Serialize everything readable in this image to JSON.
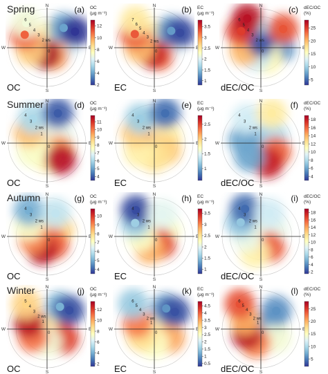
{
  "colormap": [
    "#313695",
    "#4575b4",
    "#74add1",
    "#abd9e9",
    "#e0f3f8",
    "#ffffbf",
    "#fee090",
    "#fdae61",
    "#f46d43",
    "#d73027",
    "#a50026"
  ],
  "grid_color": "#c8c8c8",
  "chart_data": {
    "type": "polar-bivariate-plot",
    "panels": [
      {
        "id": "a",
        "season": "Spring",
        "variable": "OC",
        "cb_title": [
          "OC",
          "(μg m⁻³)"
        ],
        "cb_ticks": [
          2,
          4,
          6,
          8,
          10,
          12
        ],
        "cb_min": 2,
        "cb_max": 13,
        "rings": [
          "6",
          "5",
          "4",
          "3",
          "2 ws"
        ],
        "blobs": [
          {
            "angle": 20,
            "ws": 2.0,
            "value": 8
          },
          {
            "angle": 80,
            "ws": 2.5,
            "value": 6
          },
          {
            "angle": 140,
            "ws": 1.5,
            "value": 10
          },
          {
            "angle": 200,
            "ws": 1.0,
            "value": 13
          },
          {
            "angle": 260,
            "ws": 2.5,
            "value": 9
          },
          {
            "angle": 300,
            "ws": 4.0,
            "value": 11
          },
          {
            "angle": 320,
            "ws": 5.0,
            "value": 7
          },
          {
            "angle": 40,
            "ws": 4.0,
            "value": 4
          },
          {
            "angle": 60,
            "ws": 5.0,
            "value": 2
          }
        ]
      },
      {
        "id": "b",
        "season": "",
        "variable": "EC",
        "cb_title": [
          "EC",
          "(μg m⁻³)"
        ],
        "cb_ticks": [
          1,
          1.5,
          2,
          2.5,
          3,
          3.5
        ],
        "cb_min": 0.8,
        "cb_max": 3.8,
        "rings": [
          "7",
          "6",
          "5",
          "4",
          "3",
          "2 ws"
        ],
        "blobs": [
          {
            "angle": 20,
            "ws": 2.0,
            "value": 2.5
          },
          {
            "angle": 80,
            "ws": 2.5,
            "value": 2
          },
          {
            "angle": 150,
            "ws": 1.5,
            "value": 3.2
          },
          {
            "angle": 200,
            "ws": 1.0,
            "value": 3.6
          },
          {
            "angle": 270,
            "ws": 2.5,
            "value": 2.8
          },
          {
            "angle": 305,
            "ws": 4.0,
            "value": 3.3
          },
          {
            "angle": 325,
            "ws": 5.5,
            "value": 2.5
          },
          {
            "angle": 45,
            "ws": 4.0,
            "value": 1.3
          },
          {
            "angle": 60,
            "ws": 5.0,
            "value": 0.9
          }
        ]
      },
      {
        "id": "c",
        "season": "",
        "variable": "dEC/OC",
        "cb_title": [
          "dEC/OC",
          "(%)"
        ],
        "cb_ticks": [
          5,
          10,
          15,
          20,
          25
        ],
        "cb_min": 3,
        "cb_max": 28,
        "rings": [
          "6",
          "5",
          "4",
          "3",
          "2 ws"
        ],
        "blobs": [
          {
            "angle": 30,
            "ws": 2.0,
            "value": 10
          },
          {
            "angle": 90,
            "ws": 3.0,
            "value": 7
          },
          {
            "angle": 150,
            "ws": 2.0,
            "value": 16
          },
          {
            "angle": 210,
            "ws": 1.5,
            "value": 12
          },
          {
            "angle": 260,
            "ws": 2.5,
            "value": 20
          },
          {
            "angle": 310,
            "ws": 4.0,
            "value": 25
          },
          {
            "angle": 335,
            "ws": 5.0,
            "value": 27
          },
          {
            "angle": 50,
            "ws": 4.5,
            "value": 24
          },
          {
            "angle": 0,
            "ws": 0.5,
            "value": 4
          }
        ]
      },
      {
        "id": "d",
        "season": "Summer",
        "variable": "OC",
        "cb_title": [
          "OC",
          "(μg m⁻³)"
        ],
        "cb_ticks": [
          4,
          5,
          6,
          7,
          8,
          9,
          10,
          11
        ],
        "cb_min": 3.5,
        "cb_max": 11.8,
        "rings": [
          "4",
          "3",
          "2 ws",
          "1"
        ],
        "blobs": [
          {
            "angle": 0,
            "ws": 0.5,
            "value": 9
          },
          {
            "angle": 60,
            "ws": 2.0,
            "value": 7
          },
          {
            "angle": 120,
            "ws": 2.0,
            "value": 9.5
          },
          {
            "angle": 180,
            "ws": 2.0,
            "value": 8
          },
          {
            "angle": 240,
            "ws": 2.5,
            "value": 7.5
          },
          {
            "angle": 300,
            "ws": 3.0,
            "value": 9
          },
          {
            "angle": 330,
            "ws": 4.0,
            "value": 6
          },
          {
            "angle": 20,
            "ws": 4.5,
            "value": 4
          },
          {
            "angle": 140,
            "ws": 3.0,
            "value": 11.5
          }
        ]
      },
      {
        "id": "e",
        "season": "",
        "variable": "EC",
        "cb_title": [
          "EC",
          "(μg m⁻³)"
        ],
        "cb_ticks": [
          1,
          1.5,
          2,
          2.5
        ],
        "cb_min": 0.6,
        "cb_max": 2.8,
        "rings": [
          "4",
          "3",
          "2 ws",
          "1"
        ],
        "blobs": [
          {
            "angle": 0,
            "ws": 0.3,
            "value": 2.7
          },
          {
            "angle": 60,
            "ws": 2.0,
            "value": 1.8
          },
          {
            "angle": 120,
            "ws": 2.0,
            "value": 2.0
          },
          {
            "angle": 180,
            "ws": 2.0,
            "value": 1.9
          },
          {
            "angle": 240,
            "ws": 2.5,
            "value": 1.8
          },
          {
            "angle": 300,
            "ws": 3.0,
            "value": 2.0
          },
          {
            "angle": 330,
            "ws": 4.0,
            "value": 1.2
          },
          {
            "angle": 20,
            "ws": 4.5,
            "value": 0.8
          }
        ]
      },
      {
        "id": "f",
        "season": "",
        "variable": "dEC/OC",
        "cb_title": [
          "dEC/OC",
          "(%)"
        ],
        "cb_ticks": [
          4,
          6,
          8,
          10,
          12,
          14,
          16,
          18
        ],
        "cb_min": 3,
        "cb_max": 19,
        "rings": [
          "4",
          "3",
          "2 ws",
          "1"
        ],
        "blobs": [
          {
            "angle": 0,
            "ws": 0.5,
            "value": 5
          },
          {
            "angle": 60,
            "ws": 2.0,
            "value": 8
          },
          {
            "angle": 120,
            "ws": 2.5,
            "value": 16
          },
          {
            "angle": 160,
            "ws": 3.0,
            "value": 18
          },
          {
            "angle": 220,
            "ws": 2.5,
            "value": 6
          },
          {
            "angle": 280,
            "ws": 2.5,
            "value": 6
          },
          {
            "angle": 330,
            "ws": 4.0,
            "value": 9
          },
          {
            "angle": 20,
            "ws": 4.5,
            "value": 12
          }
        ]
      },
      {
        "id": "g",
        "season": "Autumn",
        "variable": "OC",
        "cb_title": [
          "OC",
          "(μg m⁻³)"
        ],
        "cb_ticks": [
          4,
          5,
          6,
          7,
          8,
          9,
          10
        ],
        "cb_min": 3.5,
        "cb_max": 10.8,
        "rings": [
          "4",
          "3",
          "2 ws",
          "1"
        ],
        "blobs": [
          {
            "angle": 0,
            "ws": 0.5,
            "value": 10
          },
          {
            "angle": 60,
            "ws": 2.0,
            "value": 8
          },
          {
            "angle": 140,
            "ws": 1.5,
            "value": 9.5
          },
          {
            "angle": 200,
            "ws": 2.0,
            "value": 10.5
          },
          {
            "angle": 260,
            "ws": 2.0,
            "value": 9
          },
          {
            "angle": 300,
            "ws": 3.0,
            "value": 7
          },
          {
            "angle": 325,
            "ws": 4.5,
            "value": 5
          },
          {
            "angle": 20,
            "ws": 3.5,
            "value": 6
          }
        ]
      },
      {
        "id": "h",
        "season": "",
        "variable": "EC",
        "cb_title": [
          "EC",
          "(μg m⁻³)"
        ],
        "cb_ticks": [
          1,
          1.5,
          2,
          2.5,
          3,
          3.5
        ],
        "cb_min": 0.8,
        "cb_max": 3.7,
        "rings": [
          "4",
          "3",
          "2 ws",
          "1"
        ],
        "blobs": [
          {
            "angle": 0,
            "ws": 0.5,
            "value": 3.0
          },
          {
            "angle": 60,
            "ws": 2.0,
            "value": 2.2
          },
          {
            "angle": 140,
            "ws": 1.5,
            "value": 3.3
          },
          {
            "angle": 200,
            "ws": 2.0,
            "value": 2.8
          },
          {
            "angle": 270,
            "ws": 2.0,
            "value": 2.2
          },
          {
            "angle": 305,
            "ws": 3.5,
            "value": 1.6
          },
          {
            "angle": 325,
            "ws": 4.8,
            "value": 0.9
          },
          {
            "angle": 20,
            "ws": 3.5,
            "value": 2.0
          }
        ]
      },
      {
        "id": "i",
        "season": "",
        "variable": "dEC/OC",
        "cb_title": [
          "dEC/OC",
          "(%)"
        ],
        "cb_ticks": [
          2,
          4,
          6,
          8,
          10,
          12,
          14,
          16,
          18
        ],
        "cb_min": 1.5,
        "cb_max": 19,
        "rings": [
          "4",
          "3",
          "2 ws",
          "1"
        ],
        "blobs": [
          {
            "angle": 0,
            "ws": 0.5,
            "value": 12
          },
          {
            "angle": 60,
            "ws": 2.0,
            "value": 9
          },
          {
            "angle": 140,
            "ws": 2.0,
            "value": 16
          },
          {
            "angle": 200,
            "ws": 2.5,
            "value": 11
          },
          {
            "angle": 270,
            "ws": 2.0,
            "value": 9
          },
          {
            "angle": 305,
            "ws": 3.5,
            "value": 6
          },
          {
            "angle": 330,
            "ws": 4.5,
            "value": 3
          },
          {
            "angle": 20,
            "ws": 3.5,
            "value": 8
          }
        ]
      },
      {
        "id": "j",
        "season": "Winter",
        "variable": "OC",
        "cb_title": [
          "OC",
          "(μg m⁻³)"
        ],
        "cb_ticks": [
          2,
          4,
          6,
          8,
          10,
          12
        ],
        "cb_min": 1.5,
        "cb_max": 13.5,
        "rings": [
          "5",
          "4",
          "3",
          "2 ws",
          "1"
        ],
        "blobs": [
          {
            "angle": 0,
            "ws": 0.5,
            "value": 11
          },
          {
            "angle": 60,
            "ws": 2.0,
            "value": 8
          },
          {
            "angle": 120,
            "ws": 3.0,
            "value": 12
          },
          {
            "angle": 180,
            "ws": 2.0,
            "value": 7
          },
          {
            "angle": 240,
            "ws": 2.5,
            "value": 11
          },
          {
            "angle": 290,
            "ws": 3.0,
            "value": 13
          },
          {
            "angle": 320,
            "ws": 5.0,
            "value": 9
          },
          {
            "angle": 30,
            "ws": 4.0,
            "value": 4
          },
          {
            "angle": 50,
            "ws": 4.5,
            "value": 2
          }
        ]
      },
      {
        "id": "k",
        "season": "",
        "variable": "EC",
        "cb_title": [
          "EC",
          "(μg m⁻³)"
        ],
        "cb_ticks": [
          0.5,
          1,
          1.5,
          2,
          2.5,
          3,
          3.5,
          4,
          4.5
        ],
        "cb_min": 0.3,
        "cb_max": 4.8,
        "rings": [
          "6",
          "5",
          "4",
          "3",
          "2 ws",
          "1"
        ],
        "blobs": [
          {
            "angle": 0,
            "ws": 0.5,
            "value": 3.5
          },
          {
            "angle": 60,
            "ws": 2.0,
            "value": 2.5
          },
          {
            "angle": 120,
            "ws": 3.0,
            "value": 3.5
          },
          {
            "angle": 180,
            "ws": 2.5,
            "value": 2.5
          },
          {
            "angle": 240,
            "ws": 2.5,
            "value": 3.0
          },
          {
            "angle": 290,
            "ws": 3.0,
            "value": 3.8
          },
          {
            "angle": 320,
            "ws": 5.5,
            "value": 1.5
          },
          {
            "angle": 30,
            "ws": 4.0,
            "value": 1.0
          },
          {
            "angle": 50,
            "ws": 4.5,
            "value": 0.5
          }
        ]
      },
      {
        "id": "l",
        "season": "",
        "variable": "dEC/OC",
        "cb_title": [
          "dEC/OC",
          "(%)"
        ],
        "cb_ticks": [
          5,
          10,
          15,
          20,
          25
        ],
        "cb_min": 2,
        "cb_max": 28,
        "rings": [
          "6",
          "5",
          "4",
          "3",
          "2 ws",
          "1"
        ],
        "blobs": [
          {
            "angle": 0,
            "ws": 0.5,
            "value": 8
          },
          {
            "angle": 60,
            "ws": 2.0,
            "value": 7
          },
          {
            "angle": 120,
            "ws": 3.0,
            "value": 14
          },
          {
            "angle": 200,
            "ws": 2.5,
            "value": 22
          },
          {
            "angle": 250,
            "ws": 2.5,
            "value": 27
          },
          {
            "angle": 300,
            "ws": 3.0,
            "value": 20
          },
          {
            "angle": 320,
            "ws": 5.5,
            "value": 24
          },
          {
            "angle": 40,
            "ws": 4.0,
            "value": 6
          }
        ]
      }
    ]
  }
}
